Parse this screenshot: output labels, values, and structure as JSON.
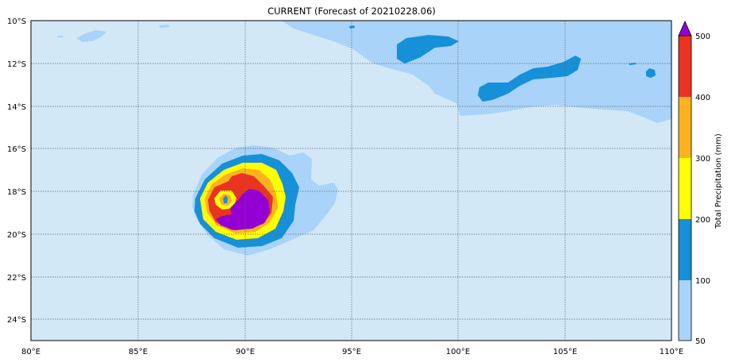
{
  "title": "CURRENT (Forecast of 20210228.06)",
  "map": {
    "lon_range": [
      80,
      110
    ],
    "lat_range": [
      -25,
      -10
    ],
    "grid": true,
    "x_tick_labels": [
      "80°E",
      "85°E",
      "90°E",
      "95°E",
      "100°E",
      "105°E",
      "110°E"
    ],
    "y_tick_labels": [
      "10°S",
      "12°S",
      "14°S",
      "16°S",
      "18°S",
      "20°S",
      "22°S",
      "24°S"
    ],
    "background_color": "#d2e8f7"
  },
  "colorbar": {
    "label": "Total Precipitation (mm)",
    "levels": [
      "50",
      "100",
      "200",
      "300",
      "400",
      "500"
    ],
    "colors": [
      "#a9d3f8",
      "#1690d8",
      "#ffff00",
      "#fbb21e",
      "#e83420",
      "#9400d3"
    ],
    "extend": "max"
  }
}
